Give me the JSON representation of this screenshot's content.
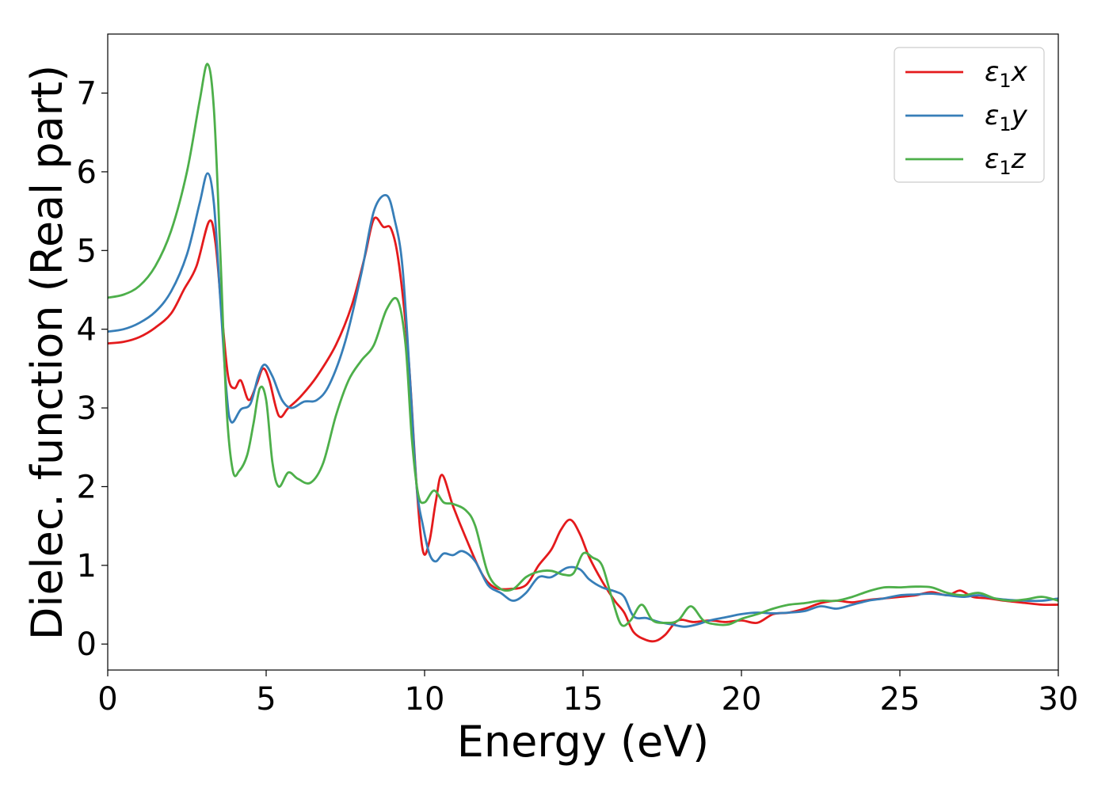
{
  "chart_data": {
    "type": "line",
    "title": "",
    "xlabel": "Energy (eV)",
    "ylabel": "Dielec. function (Real part)",
    "xlim": [
      0,
      30
    ],
    "ylim": [
      -0.33,
      7.75
    ],
    "xticks": [
      0,
      5,
      10,
      15,
      20,
      25,
      30
    ],
    "yticks": [
      0,
      1,
      2,
      3,
      4,
      5,
      6,
      7
    ],
    "grid": false,
    "legend_position": "top-right",
    "series": [
      {
        "name": "ε1x",
        "legend_base": "ε",
        "legend_sub": "1",
        "legend_suffix": "x",
        "color": "#e41a1c",
        "points": [
          [
            0,
            3.82
          ],
          [
            0.5,
            3.84
          ],
          [
            1,
            3.9
          ],
          [
            1.5,
            4.02
          ],
          [
            2,
            4.2
          ],
          [
            2.4,
            4.5
          ],
          [
            2.8,
            4.8
          ],
          [
            3.2,
            5.37
          ],
          [
            3.4,
            5.1
          ],
          [
            3.6,
            4.2
          ],
          [
            3.8,
            3.4
          ],
          [
            4,
            3.25
          ],
          [
            4.2,
            3.35
          ],
          [
            4.45,
            3.1
          ],
          [
            4.7,
            3.3
          ],
          [
            4.9,
            3.5
          ],
          [
            5.1,
            3.35
          ],
          [
            5.4,
            2.9
          ],
          [
            5.7,
            3.0
          ],
          [
            6.1,
            3.15
          ],
          [
            6.6,
            3.4
          ],
          [
            7.2,
            3.8
          ],
          [
            7.7,
            4.3
          ],
          [
            8.1,
            4.9
          ],
          [
            8.4,
            5.4
          ],
          [
            8.7,
            5.3
          ],
          [
            8.95,
            5.27
          ],
          [
            9.2,
            4.8
          ],
          [
            9.5,
            3.6
          ],
          [
            9.75,
            2.0
          ],
          [
            9.95,
            1.18
          ],
          [
            10.15,
            1.3
          ],
          [
            10.35,
            1.8
          ],
          [
            10.55,
            2.15
          ],
          [
            10.9,
            1.75
          ],
          [
            11.3,
            1.35
          ],
          [
            11.8,
            0.9
          ],
          [
            12.2,
            0.72
          ],
          [
            12.7,
            0.7
          ],
          [
            13.2,
            0.75
          ],
          [
            13.6,
            1.0
          ],
          [
            14,
            1.2
          ],
          [
            14.3,
            1.45
          ],
          [
            14.6,
            1.58
          ],
          [
            14.9,
            1.4
          ],
          [
            15.2,
            1.1
          ],
          [
            15.6,
            0.8
          ],
          [
            16,
            0.55
          ],
          [
            16.3,
            0.4
          ],
          [
            16.6,
            0.15
          ],
          [
            17,
            0.05
          ],
          [
            17.3,
            0.04
          ],
          [
            17.6,
            0.12
          ],
          [
            18,
            0.3
          ],
          [
            18.5,
            0.28
          ],
          [
            19,
            0.3
          ],
          [
            19.5,
            0.28
          ],
          [
            20,
            0.3
          ],
          [
            20.5,
            0.27
          ],
          [
            21,
            0.38
          ],
          [
            21.5,
            0.4
          ],
          [
            22,
            0.45
          ],
          [
            22.5,
            0.52
          ],
          [
            23,
            0.55
          ],
          [
            23.5,
            0.53
          ],
          [
            24,
            0.56
          ],
          [
            24.5,
            0.58
          ],
          [
            25,
            0.6
          ],
          [
            25.5,
            0.62
          ],
          [
            26,
            0.66
          ],
          [
            26.5,
            0.62
          ],
          [
            26.9,
            0.68
          ],
          [
            27.3,
            0.6
          ],
          [
            27.8,
            0.58
          ],
          [
            28.3,
            0.55
          ],
          [
            29,
            0.52
          ],
          [
            29.5,
            0.5
          ],
          [
            30,
            0.5
          ]
        ]
      },
      {
        "name": "ε1y",
        "legend_base": "ε",
        "legend_sub": "1",
        "legend_suffix": "y",
        "color": "#377eb8",
        "points": [
          [
            0,
            3.97
          ],
          [
            0.5,
            4.0
          ],
          [
            1,
            4.08
          ],
          [
            1.5,
            4.22
          ],
          [
            2,
            4.48
          ],
          [
            2.5,
            4.95
          ],
          [
            2.9,
            5.6
          ],
          [
            3.15,
            5.98
          ],
          [
            3.35,
            5.6
          ],
          [
            3.55,
            4.4
          ],
          [
            3.75,
            3.2
          ],
          [
            3.9,
            2.82
          ],
          [
            4.2,
            2.98
          ],
          [
            4.5,
            3.05
          ],
          [
            4.75,
            3.4
          ],
          [
            4.95,
            3.55
          ],
          [
            5.2,
            3.4
          ],
          [
            5.5,
            3.1
          ],
          [
            5.8,
            3.0
          ],
          [
            6.2,
            3.08
          ],
          [
            6.6,
            3.1
          ],
          [
            7,
            3.3
          ],
          [
            7.5,
            3.85
          ],
          [
            8,
            4.7
          ],
          [
            8.4,
            5.5
          ],
          [
            8.8,
            5.7
          ],
          [
            9.05,
            5.4
          ],
          [
            9.3,
            4.8
          ],
          [
            9.55,
            3.3
          ],
          [
            9.75,
            2.0
          ],
          [
            9.95,
            1.5
          ],
          [
            10.15,
            1.15
          ],
          [
            10.35,
            1.05
          ],
          [
            10.6,
            1.15
          ],
          [
            10.9,
            1.13
          ],
          [
            11.2,
            1.18
          ],
          [
            11.6,
            1.05
          ],
          [
            12,
            0.75
          ],
          [
            12.4,
            0.65
          ],
          [
            12.8,
            0.55
          ],
          [
            13.2,
            0.65
          ],
          [
            13.6,
            0.85
          ],
          [
            14,
            0.85
          ],
          [
            14.5,
            0.97
          ],
          [
            14.9,
            0.95
          ],
          [
            15.2,
            0.82
          ],
          [
            15.6,
            0.72
          ],
          [
            16,
            0.67
          ],
          [
            16.3,
            0.6
          ],
          [
            16.6,
            0.35
          ],
          [
            17,
            0.33
          ],
          [
            17.4,
            0.28
          ],
          [
            17.8,
            0.25
          ],
          [
            18.2,
            0.22
          ],
          [
            18.6,
            0.25
          ],
          [
            19,
            0.3
          ],
          [
            19.5,
            0.34
          ],
          [
            20,
            0.38
          ],
          [
            20.5,
            0.4
          ],
          [
            21,
            0.39
          ],
          [
            21.5,
            0.4
          ],
          [
            22,
            0.42
          ],
          [
            22.5,
            0.48
          ],
          [
            23,
            0.45
          ],
          [
            23.5,
            0.5
          ],
          [
            24,
            0.55
          ],
          [
            24.5,
            0.58
          ],
          [
            25,
            0.62
          ],
          [
            25.5,
            0.63
          ],
          [
            26,
            0.64
          ],
          [
            26.5,
            0.62
          ],
          [
            27,
            0.6
          ],
          [
            27.5,
            0.62
          ],
          [
            28,
            0.58
          ],
          [
            28.5,
            0.56
          ],
          [
            29,
            0.55
          ],
          [
            29.5,
            0.55
          ],
          [
            30,
            0.58
          ]
        ]
      },
      {
        "name": "ε1z",
        "legend_base": "ε",
        "legend_sub": "1",
        "legend_suffix": "z",
        "color": "#4daf4a",
        "points": [
          [
            0,
            4.4
          ],
          [
            0.5,
            4.44
          ],
          [
            1,
            4.55
          ],
          [
            1.5,
            4.8
          ],
          [
            2,
            5.25
          ],
          [
            2.5,
            6.0
          ],
          [
            2.9,
            6.9
          ],
          [
            3.15,
            7.37
          ],
          [
            3.35,
            6.8
          ],
          [
            3.55,
            5.0
          ],
          [
            3.75,
            3.0
          ],
          [
            3.95,
            2.2
          ],
          [
            4.15,
            2.2
          ],
          [
            4.4,
            2.4
          ],
          [
            4.6,
            2.8
          ],
          [
            4.8,
            3.25
          ],
          [
            5.0,
            3.1
          ],
          [
            5.2,
            2.3
          ],
          [
            5.4,
            2.0
          ],
          [
            5.7,
            2.18
          ],
          [
            6.0,
            2.1
          ],
          [
            6.4,
            2.05
          ],
          [
            6.8,
            2.3
          ],
          [
            7.2,
            2.9
          ],
          [
            7.6,
            3.35
          ],
          [
            8.0,
            3.6
          ],
          [
            8.4,
            3.8
          ],
          [
            8.8,
            4.25
          ],
          [
            9.15,
            4.37
          ],
          [
            9.4,
            3.8
          ],
          [
            9.6,
            2.6
          ],
          [
            9.8,
            1.9
          ],
          [
            10.0,
            1.8
          ],
          [
            10.3,
            1.95
          ],
          [
            10.6,
            1.8
          ],
          [
            10.9,
            1.78
          ],
          [
            11.3,
            1.7
          ],
          [
            11.6,
            1.5
          ],
          [
            12,
            0.9
          ],
          [
            12.4,
            0.7
          ],
          [
            12.8,
            0.7
          ],
          [
            13.2,
            0.85
          ],
          [
            13.6,
            0.92
          ],
          [
            14,
            0.93
          ],
          [
            14.4,
            0.88
          ],
          [
            14.7,
            0.9
          ],
          [
            15.0,
            1.15
          ],
          [
            15.3,
            1.1
          ],
          [
            15.6,
            1.0
          ],
          [
            15.9,
            0.6
          ],
          [
            16.2,
            0.25
          ],
          [
            16.5,
            0.3
          ],
          [
            16.85,
            0.5
          ],
          [
            17.2,
            0.3
          ],
          [
            17.6,
            0.27
          ],
          [
            18.0,
            0.3
          ],
          [
            18.4,
            0.48
          ],
          [
            18.8,
            0.3
          ],
          [
            19.2,
            0.25
          ],
          [
            19.6,
            0.25
          ],
          [
            20,
            0.32
          ],
          [
            20.5,
            0.38
          ],
          [
            21,
            0.45
          ],
          [
            21.5,
            0.5
          ],
          [
            22,
            0.52
          ],
          [
            22.5,
            0.55
          ],
          [
            23,
            0.55
          ],
          [
            23.5,
            0.6
          ],
          [
            24,
            0.67
          ],
          [
            24.5,
            0.72
          ],
          [
            25,
            0.72
          ],
          [
            25.5,
            0.73
          ],
          [
            26,
            0.72
          ],
          [
            26.5,
            0.65
          ],
          [
            27,
            0.62
          ],
          [
            27.5,
            0.65
          ],
          [
            28,
            0.58
          ],
          [
            28.5,
            0.55
          ],
          [
            29,
            0.57
          ],
          [
            29.5,
            0.6
          ],
          [
            30,
            0.55
          ]
        ]
      }
    ]
  }
}
